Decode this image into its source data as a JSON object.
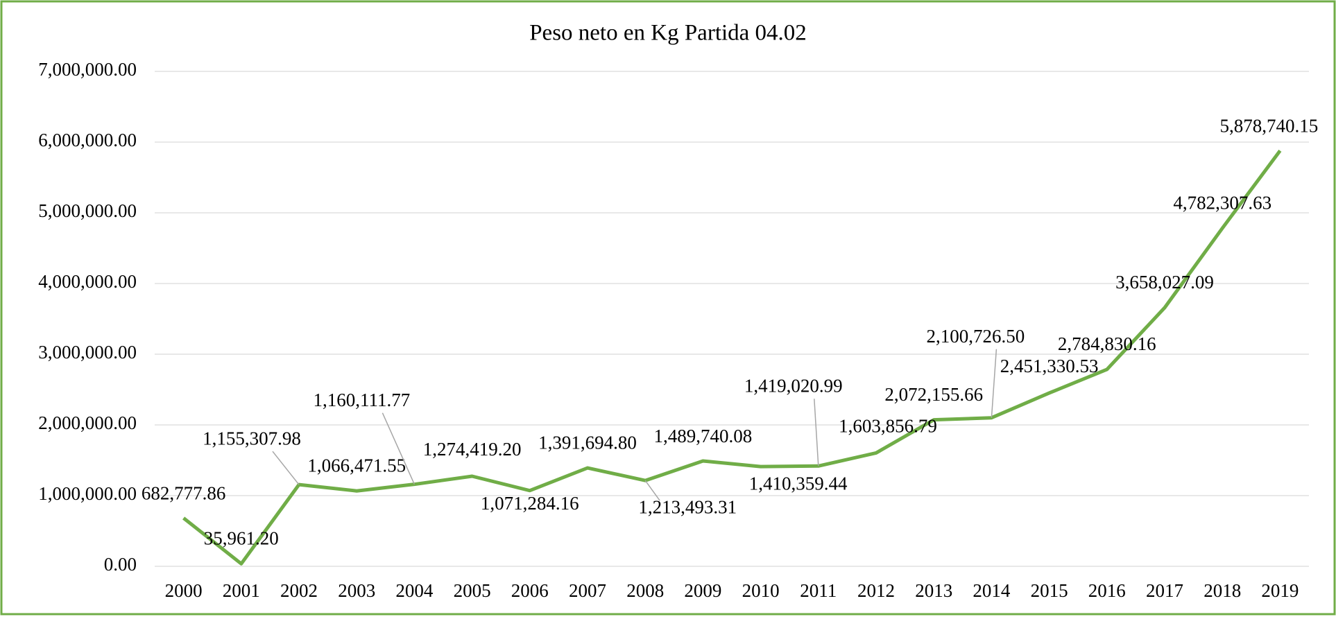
{
  "chart_data": {
    "type": "line",
    "title": "Peso neto en Kg Partida 04.02",
    "categories": [
      "2000",
      "2001",
      "2002",
      "2003",
      "2004",
      "2005",
      "2006",
      "2007",
      "2008",
      "2009",
      "2010",
      "2011",
      "2012",
      "2013",
      "2014",
      "2015",
      "2016",
      "2017",
      "2018",
      "2019"
    ],
    "series": [
      {
        "name": "Peso neto",
        "color": "#70ad47",
        "values": [
          682777.86,
          35961.2,
          1155307.98,
          1066471.55,
          1160111.77,
          1274419.2,
          1071284.16,
          1391694.8,
          1213493.31,
          1489740.08,
          1410359.44,
          1419020.99,
          1603856.79,
          2072155.66,
          2100726.5,
          2451330.53,
          2784830.16,
          3658027.09,
          4782307.63,
          5878740.15
        ],
        "value_labels": [
          "682,777.86",
          "35,961.20",
          "1,155,307.98",
          "1,066,471.55",
          "1,160,111.77",
          "1,274,419.20",
          "1,071,284.16",
          "1,391,694.80",
          "1,213,493.31",
          "1,489,740.08",
          "1,410,359.44",
          "1,419,020.99",
          "1,603,856.79",
          "2,072,155.66",
          "2,100,726.50",
          "2,451,330.53",
          "2,784,830.16",
          "3,658,027.09",
          "4,782,307.63",
          "5,878,740.15"
        ]
      }
    ],
    "ylim": [
      0,
      7000000
    ],
    "yticks": [
      {
        "value": 0,
        "label": "0.00"
      },
      {
        "value": 1000000,
        "label": "1,000,000.00"
      },
      {
        "value": 2000000,
        "label": "2,000,000.00"
      },
      {
        "value": 3000000,
        "label": "3,000,000.00"
      },
      {
        "value": 4000000,
        "label": "4,000,000.00"
      },
      {
        "value": 5000000,
        "label": "5,000,000.00"
      },
      {
        "value": 6000000,
        "label": "6,000,000.00"
      },
      {
        "value": 7000000,
        "label": "7,000,000.00"
      }
    ],
    "grid": true
  }
}
